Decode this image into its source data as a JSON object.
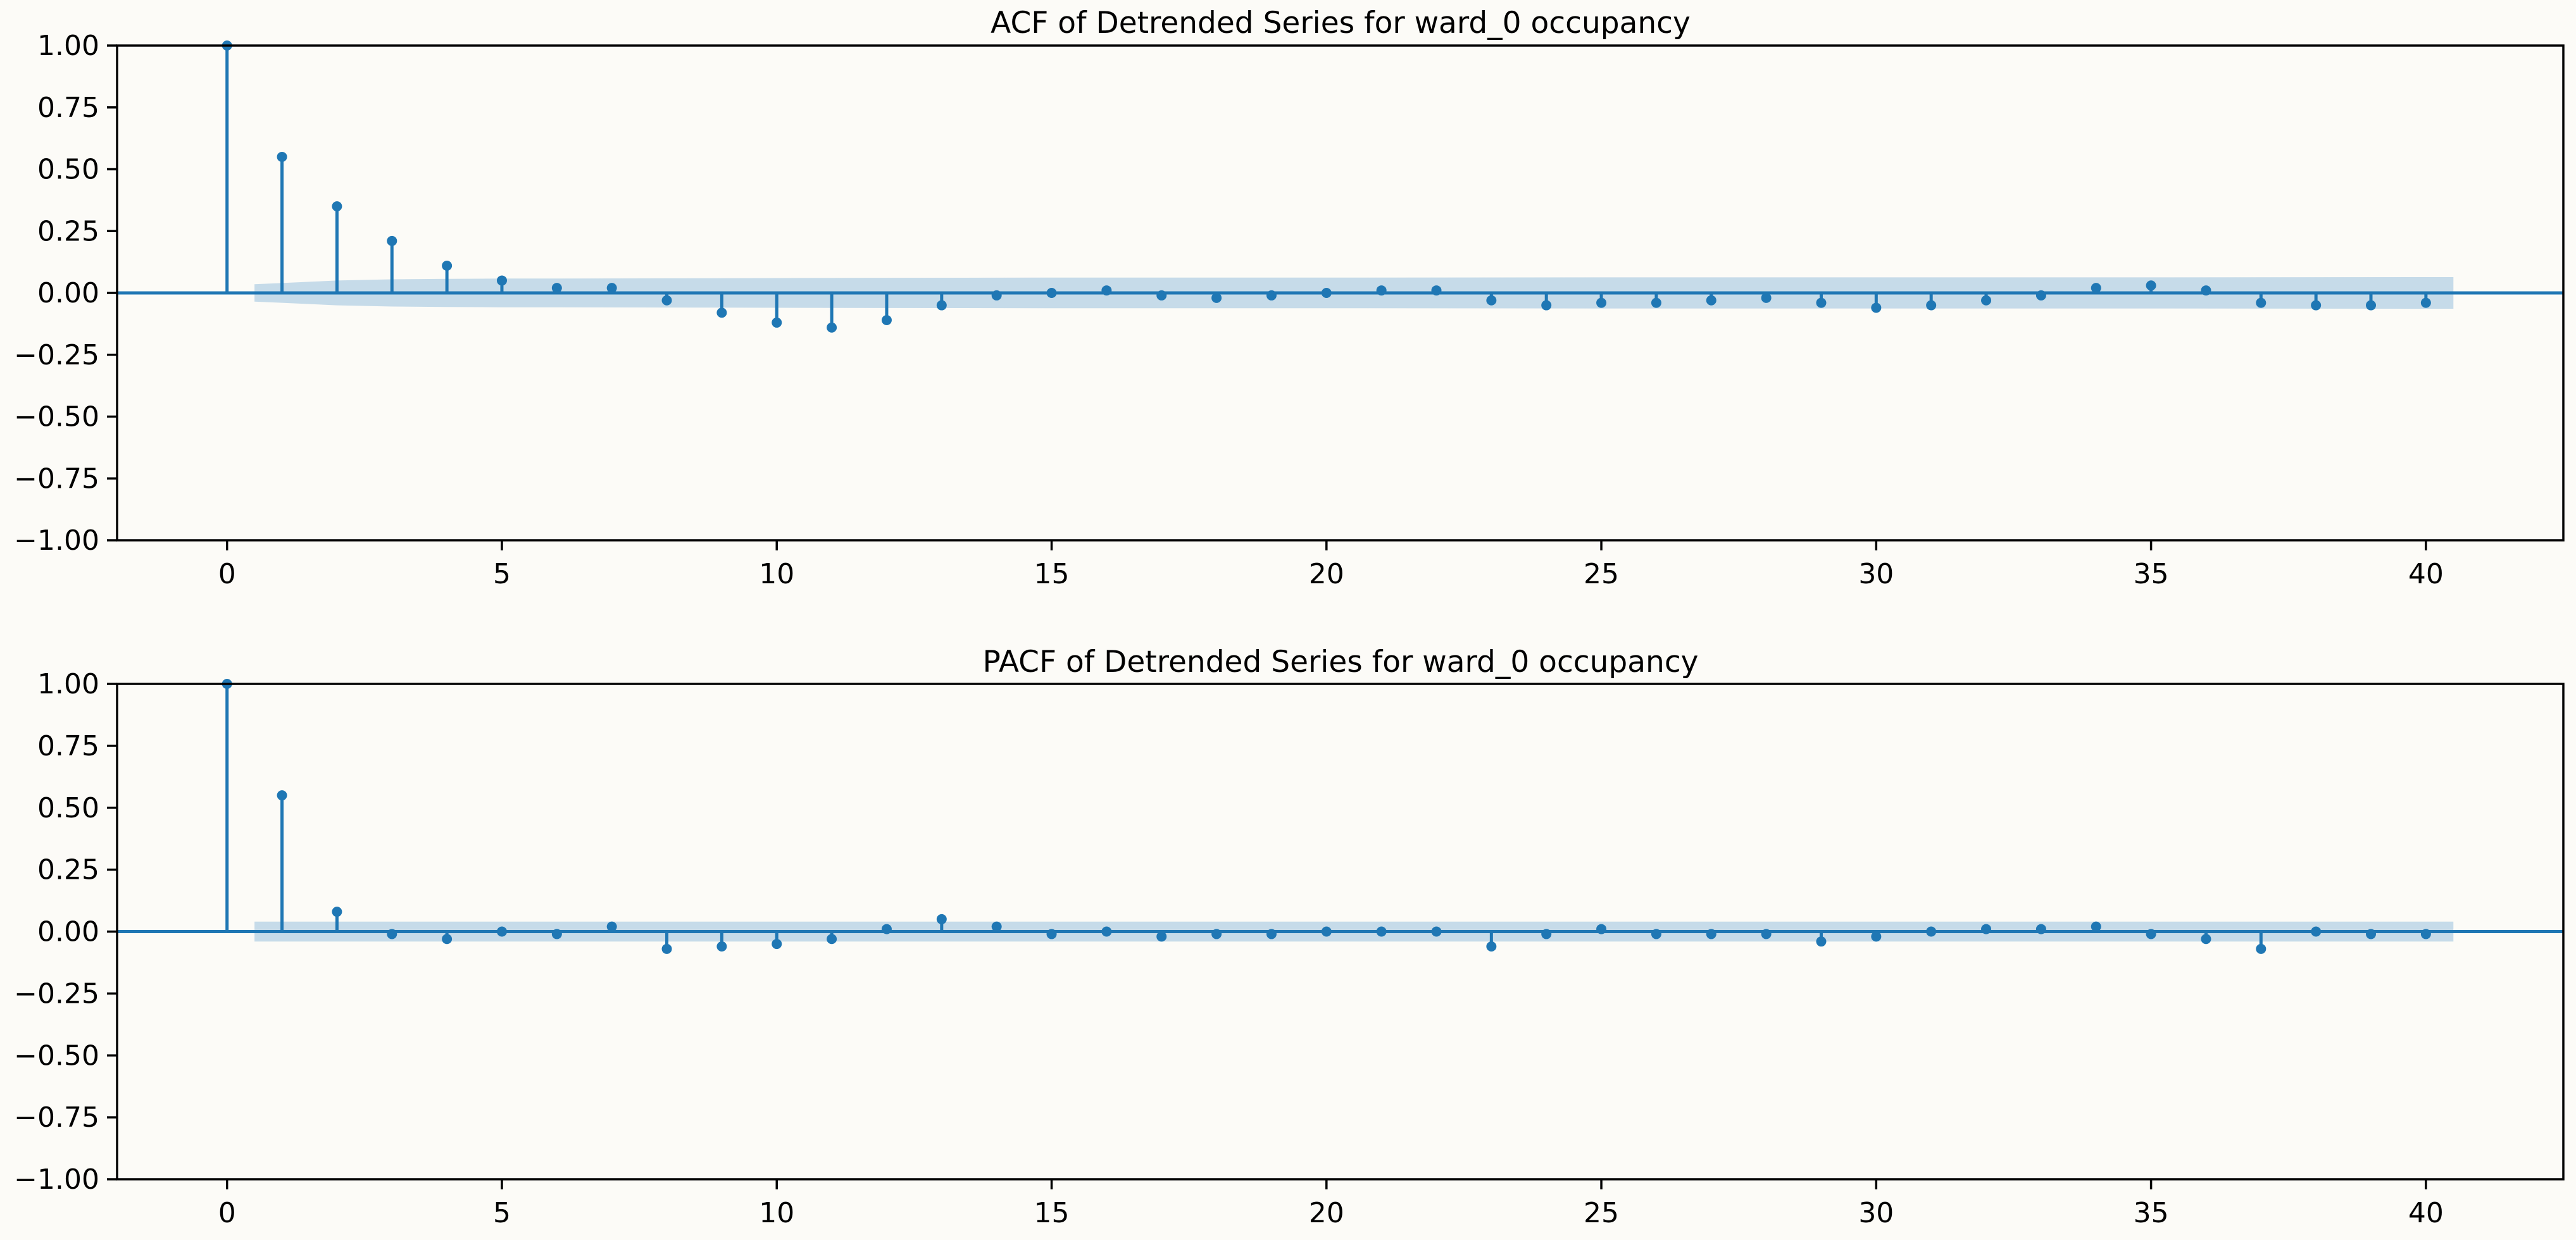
{
  "figure": {
    "background": "#fcfbf7",
    "stem_color": "#1f77b4",
    "band_color": "#bcd5e6"
  },
  "chart_data": [
    {
      "type": "stem",
      "title": "ACF of Detrended Series for ward_0 occupancy",
      "xlabel": "",
      "ylabel": "",
      "xlim": [
        -2,
        42.5
      ],
      "ylim": [
        -1.0,
        1.0
      ],
      "xticks": [
        "0",
        "5",
        "10",
        "15",
        "20",
        "25",
        "30",
        "35",
        "40"
      ],
      "yticks": [
        "1.00",
        "0.75",
        "0.50",
        "0.25",
        "0.00",
        "−0.25",
        "−0.50",
        "−0.75",
        "−1.00"
      ],
      "lags": [
        0,
        1,
        2,
        3,
        4,
        5,
        6,
        7,
        8,
        9,
        10,
        11,
        12,
        13,
        14,
        15,
        16,
        17,
        18,
        19,
        20,
        21,
        22,
        23,
        24,
        25,
        26,
        27,
        28,
        29,
        30,
        31,
        32,
        33,
        34,
        35,
        36,
        37,
        38,
        39,
        40
      ],
      "values": [
        1.0,
        0.55,
        0.35,
        0.21,
        0.11,
        0.05,
        0.02,
        0.02,
        -0.03,
        -0.08,
        -0.12,
        -0.14,
        -0.11,
        -0.05,
        -0.01,
        0.0,
        0.01,
        -0.01,
        -0.02,
        -0.01,
        0.0,
        0.01,
        0.01,
        -0.03,
        -0.05,
        -0.04,
        -0.04,
        -0.03,
        -0.02,
        -0.04,
        -0.06,
        -0.05,
        -0.03,
        -0.01,
        0.02,
        0.03,
        0.01,
        -0.04,
        -0.05,
        -0.05,
        -0.04
      ],
      "confint": {
        "lags": [
          0.5,
          1,
          1.5,
          2,
          3,
          4,
          5,
          6,
          8,
          10,
          12,
          15,
          20,
          25,
          30,
          35,
          40,
          40.5
        ],
        "half_width": [
          0.035,
          0.04,
          0.045,
          0.05,
          0.055,
          0.057,
          0.058,
          0.058,
          0.059,
          0.06,
          0.061,
          0.062,
          0.062,
          0.063,
          0.063,
          0.063,
          0.064,
          0.064
        ]
      },
      "grid": false
    },
    {
      "type": "stem",
      "title": "PACF of Detrended Series for ward_0 occupancy",
      "xlabel": "",
      "ylabel": "",
      "xlim": [
        -2,
        42.5
      ],
      "ylim": [
        -1.0,
        1.0
      ],
      "xticks": [
        "0",
        "5",
        "10",
        "15",
        "20",
        "25",
        "30",
        "35",
        "40"
      ],
      "yticks": [
        "1.00",
        "0.75",
        "0.50",
        "0.25",
        "0.00",
        "−0.25",
        "−0.50",
        "−0.75",
        "−1.00"
      ],
      "lags": [
        0,
        1,
        2,
        3,
        4,
        5,
        6,
        7,
        8,
        9,
        10,
        11,
        12,
        13,
        14,
        15,
        16,
        17,
        18,
        19,
        20,
        21,
        22,
        23,
        24,
        25,
        26,
        27,
        28,
        29,
        30,
        31,
        32,
        33,
        34,
        35,
        36,
        37,
        38,
        39,
        40
      ],
      "values": [
        1.0,
        0.55,
        0.08,
        -0.01,
        -0.03,
        0.0,
        -0.01,
        0.02,
        -0.07,
        -0.06,
        -0.05,
        -0.03,
        0.01,
        0.05,
        0.02,
        -0.01,
        0.0,
        -0.02,
        -0.01,
        -0.01,
        0.0,
        0.0,
        0.0,
        -0.06,
        -0.01,
        0.01,
        -0.01,
        -0.01,
        -0.01,
        -0.04,
        -0.02,
        0.0,
        0.01,
        0.01,
        0.02,
        -0.01,
        -0.03,
        -0.07,
        0.0,
        -0.01,
        -0.01
      ],
      "confint": {
        "lags": [
          0.5,
          40.5
        ],
        "half_width": [
          0.04,
          0.04
        ]
      },
      "grid": false
    }
  ]
}
